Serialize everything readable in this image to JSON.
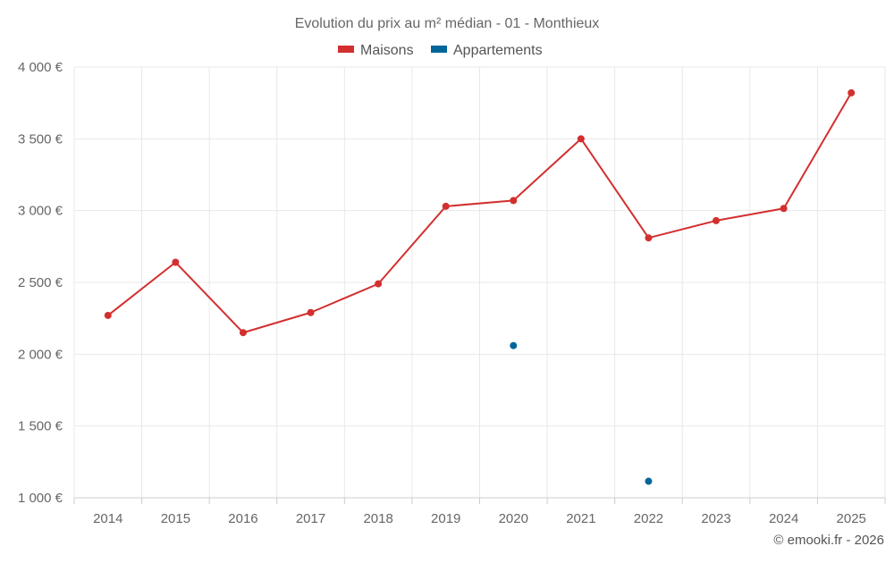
{
  "chart_data": {
    "type": "line",
    "title": "Evolution du prix au m² médian - 01 - Monthieux",
    "x": [
      "2014",
      "2015",
      "2016",
      "2017",
      "2018",
      "2019",
      "2020",
      "2021",
      "2022",
      "2023",
      "2024",
      "2025"
    ],
    "series": [
      {
        "name": "Maisons",
        "color": "#d32f2f",
        "values": [
          2270,
          2640,
          2150,
          2290,
          2490,
          3030,
          3070,
          3500,
          2810,
          2930,
          3015,
          3820
        ]
      },
      {
        "name": "Appartements",
        "color": "#006699",
        "values": [
          null,
          null,
          null,
          null,
          null,
          null,
          2060,
          null,
          1115,
          null,
          null,
          null
        ]
      }
    ],
    "ylim": [
      1000,
      4000
    ],
    "y_ticks": [
      1000,
      1500,
      2000,
      2500,
      3000,
      3500,
      4000
    ],
    "y_tick_labels": [
      "1 000 €",
      "1 500 €",
      "2 000 €",
      "2 500 €",
      "3 000 €",
      "3 500 €",
      "4 000 €"
    ],
    "grid": true,
    "legend": "top-center"
  },
  "credit": "© emooki.fr - 2026"
}
